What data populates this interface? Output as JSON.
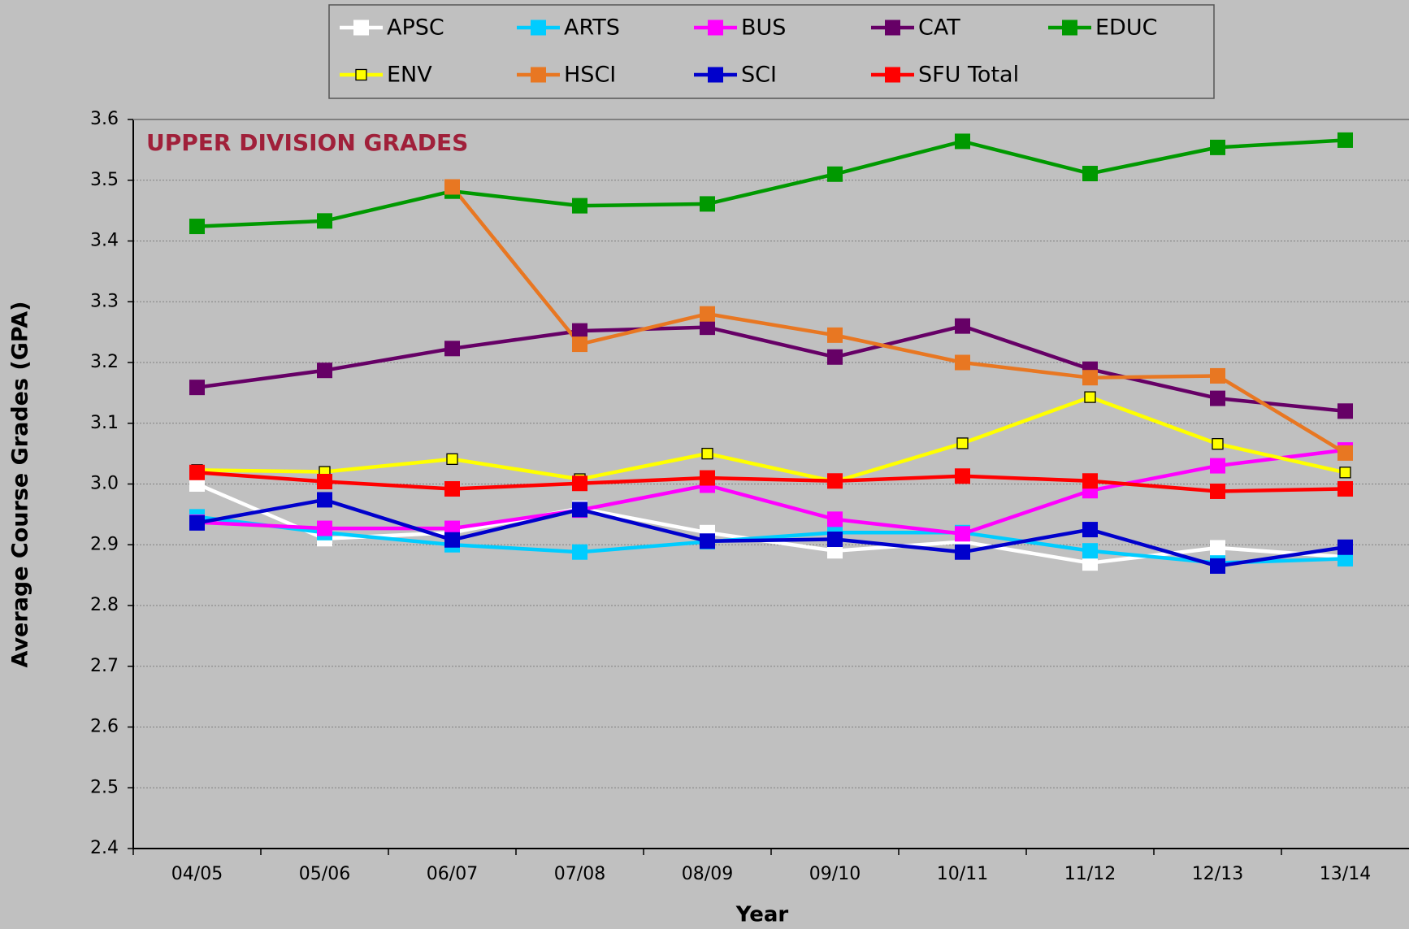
{
  "chart_data": {
    "type": "line",
    "annotation": "UPPER DIVISION GRADES",
    "x_label": "Year",
    "y_label": "Average Course Grades (GPA)",
    "categories": [
      "04/05",
      "05/06",
      "06/07",
      "07/08",
      "08/09",
      "09/10",
      "10/11",
      "11/12",
      "12/13",
      "13/14"
    ],
    "ylim": [
      2.4,
      3.6
    ],
    "yticks": [
      2.4,
      2.5,
      2.6,
      2.7,
      2.8,
      2.9,
      {
        "value": 3,
        "label": "3.0"
      },
      3.1,
      3.2,
      3.3,
      3.4,
      3.5,
      3.6
    ],
    "grid": true,
    "legend": "top",
    "series": [
      {
        "name": "APSC",
        "color": "#ffffff",
        "values": [
          3.0,
          2.91,
          2.92,
          2.96,
          2.92,
          2.89,
          2.905,
          2.87,
          2.895,
          2.88
        ]
      },
      {
        "name": "ARTS",
        "color": "#00ccff",
        "values": [
          2.946,
          2.92,
          2.9,
          2.888,
          2.905,
          2.92,
          2.92,
          2.89,
          2.87,
          2.877
        ]
      },
      {
        "name": "BUS",
        "color": "#ff00ff",
        "values": [
          2.937,
          2.927,
          2.927,
          2.957,
          2.998,
          2.942,
          2.918,
          2.989,
          3.03,
          3.056
        ]
      },
      {
        "name": "CAT",
        "color": "#660066",
        "values": [
          3.159,
          3.187,
          3.223,
          3.252,
          3.258,
          3.209,
          3.26,
          3.189,
          3.141,
          3.12
        ]
      },
      {
        "name": "EDUC",
        "color": "#009900",
        "values": [
          3.424,
          3.433,
          3.482,
          3.458,
          3.461,
          3.51,
          3.564,
          3.511,
          3.554,
          3.566
        ]
      },
      {
        "name": "ENV",
        "color": "#ffff00",
        "values": [
          3.023,
          3.02,
          3.041,
          3.008,
          3.05,
          3.004,
          3.067,
          3.143,
          3.066,
          3.019
        ]
      },
      {
        "name": "HSCI",
        "color": "#e87722",
        "values": [
          null,
          null,
          3.489,
          3.23,
          3.28,
          3.245,
          3.2,
          3.175,
          3.178,
          3.051
        ]
      },
      {
        "name": "SCI",
        "color": "#0000cc",
        "values": [
          2.936,
          2.974,
          2.908,
          2.958,
          2.906,
          2.909,
          2.888,
          2.925,
          2.865,
          2.896
        ]
      },
      {
        "name": "SFU Total",
        "color": "#ff0000",
        "values": [
          3.019,
          3.004,
          2.992,
          3.001,
          3.01,
          3.005,
          3.013,
          3.005,
          2.988,
          2.992
        ]
      }
    ]
  }
}
